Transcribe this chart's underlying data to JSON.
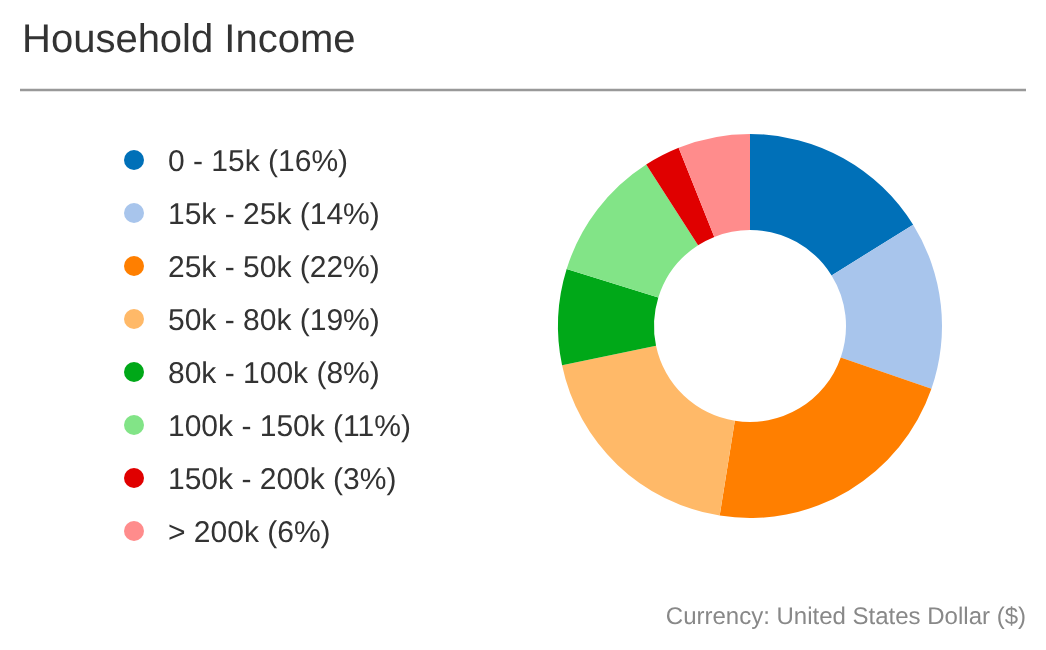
{
  "chart_data": {
    "type": "donut",
    "title": "Household Income",
    "categories": [
      "0 - 15k (16%)",
      "15k - 25k (14%)",
      "25k - 50k (22%)",
      "50k - 80k (19%)",
      "80k - 100k (8%)",
      "100k - 150k (11%)",
      "150k - 200k (3%)",
      "> 200k (6%)"
    ],
    "values": [
      16,
      14,
      22,
      19,
      8,
      11,
      3,
      6
    ],
    "colors": [
      "#0070b8",
      "#a8c5ec",
      "#ff7f00",
      "#ffb968",
      "#00a818",
      "#82e487",
      "#e00000",
      "#ff8c8c"
    ],
    "legend": "left",
    "annotations": [
      "Currency: United States Dollar ($)"
    ]
  }
}
